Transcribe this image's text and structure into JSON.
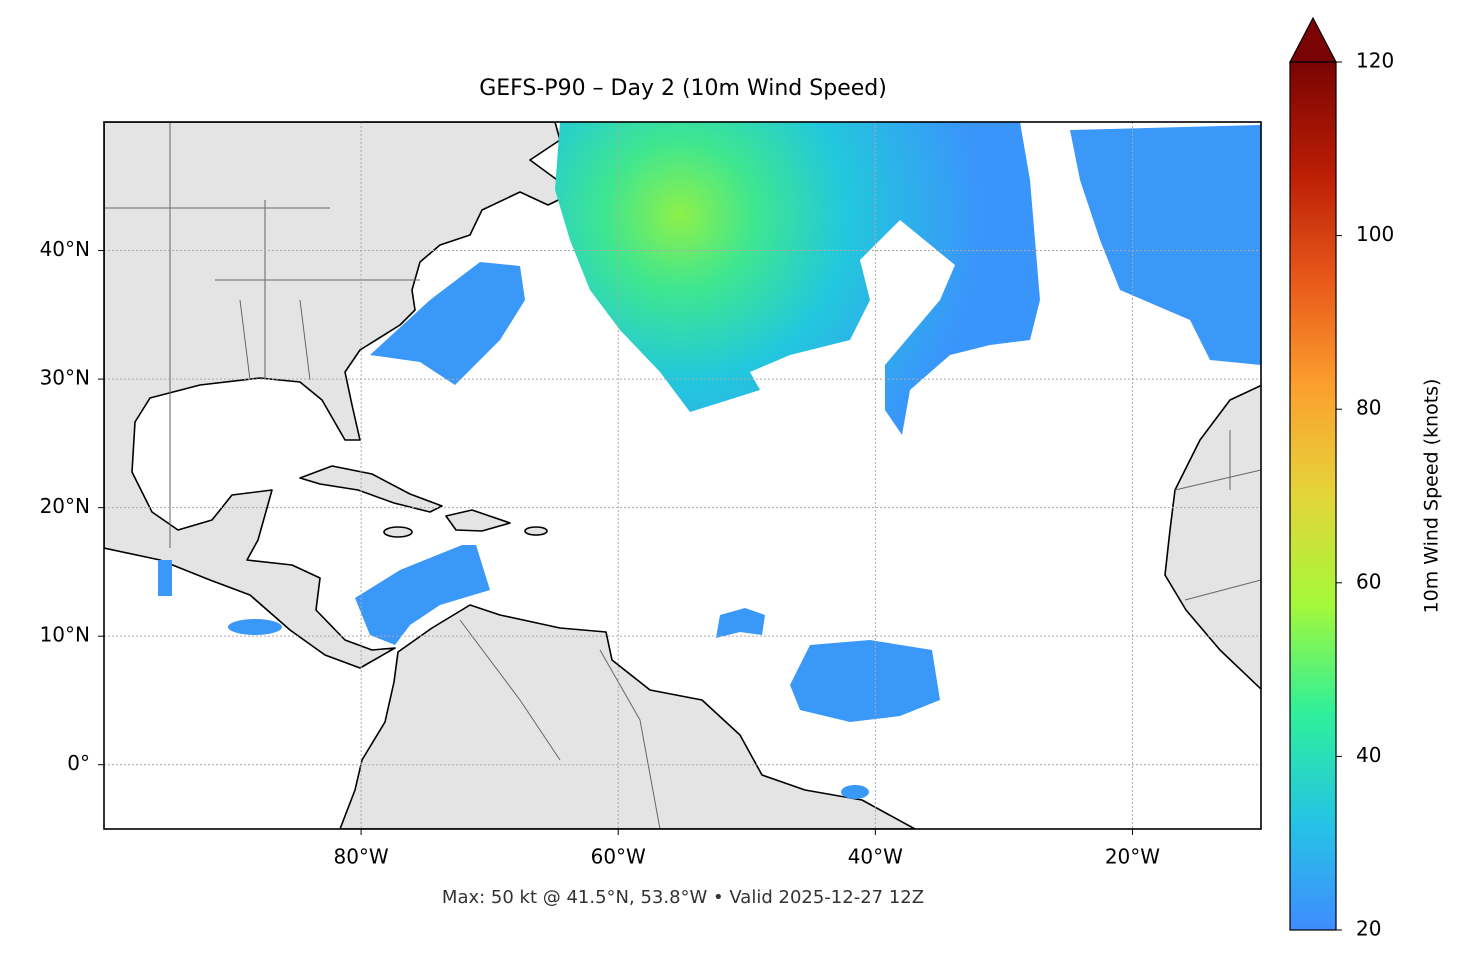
{
  "chart_data": {
    "type": "map",
    "title": "GEFS-P90 – Day 2 (10m Wind Speed)",
    "annotation": "Max: 50 kt @ 41.5°N, 53.8°W • Valid 2025-12-27 12Z",
    "xlim": [
      -100,
      -10
    ],
    "ylim": [
      -5,
      50
    ],
    "xticks": [
      {
        "value": -80,
        "label": "80°W"
      },
      {
        "value": -60,
        "label": "60°W"
      },
      {
        "value": -40,
        "label": "40°W"
      },
      {
        "value": -20,
        "label": "20°W"
      }
    ],
    "yticks": [
      {
        "value": 0,
        "label": "0°"
      },
      {
        "value": 10,
        "label": "10°N"
      },
      {
        "value": 20,
        "label": "20°N"
      },
      {
        "value": 30,
        "label": "30°N"
      },
      {
        "value": 40,
        "label": "40°N"
      }
    ],
    "grid": true,
    "colorbar": {
      "label": "10m Wind Speed (knots)",
      "lim": [
        20,
        120
      ],
      "ticks": [
        20,
        40,
        60,
        80,
        100,
        120
      ],
      "colors": [
        "#3f8cff",
        "#25c4e4",
        "#2ef09a",
        "#a4f83a",
        "#e4d53a",
        "#fca02e",
        "#e8581a",
        "#b91d05",
        "#7a0403"
      ],
      "extend": "max"
    }
  }
}
